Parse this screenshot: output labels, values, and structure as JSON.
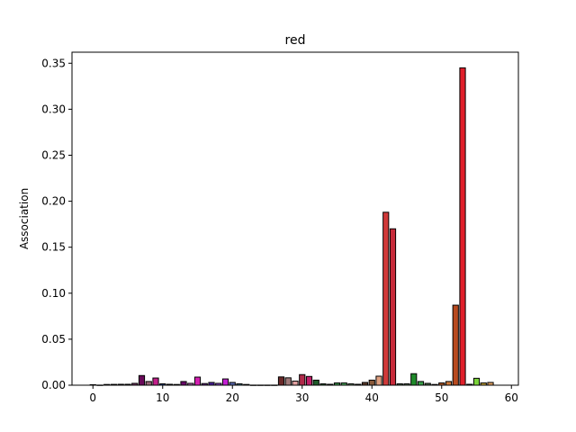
{
  "chart_data": {
    "type": "bar",
    "title": "red",
    "xlabel": "",
    "ylabel": "Association",
    "xlim": [
      -3,
      61
    ],
    "ylim": [
      0,
      0.362
    ],
    "xticks": [
      0,
      10,
      20,
      30,
      40,
      50,
      60
    ],
    "xtick_labels": [
      "0",
      "10",
      "20",
      "30",
      "40",
      "50",
      "60"
    ],
    "yticks": [
      0.0,
      0.05,
      0.1,
      0.15,
      0.2,
      0.25,
      0.3,
      0.35
    ],
    "ytick_labels": [
      "0.00",
      "0.05",
      "0.10",
      "0.15",
      "0.20",
      "0.25",
      "0.30",
      "0.35"
    ],
    "grid": false,
    "bar_width": 0.8,
    "edge_color": "#000000",
    "bars": [
      {
        "x": 0,
        "value": 0.0005,
        "color": "#4a4a4a"
      },
      {
        "x": 1,
        "value": 0.0001,
        "color": "#5a5a5a"
      },
      {
        "x": 2,
        "value": 0.0008,
        "color": "#6b6b6b"
      },
      {
        "x": 3,
        "value": 0.0009,
        "color": "#3a3a5a"
      },
      {
        "x": 4,
        "value": 0.001,
        "color": "#5a3a6a"
      },
      {
        "x": 5,
        "value": 0.001,
        "color": "#6a4a6a"
      },
      {
        "x": 6,
        "value": 0.002,
        "color": "#7a3a6a"
      },
      {
        "x": 7,
        "value": 0.0105,
        "color": "#6a0a5a"
      },
      {
        "x": 8,
        "value": 0.004,
        "color": "#9a6a7a"
      },
      {
        "x": 9,
        "value": 0.0078,
        "color": "#c21f8a"
      },
      {
        "x": 10,
        "value": 0.0015,
        "color": "#1f4fa0"
      },
      {
        "x": 11,
        "value": 0.001,
        "color": "#8a8aa0"
      },
      {
        "x": 12,
        "value": 0.0008,
        "color": "#9a9ab0"
      },
      {
        "x": 13,
        "value": 0.004,
        "color": "#6a0a6a"
      },
      {
        "x": 14,
        "value": 0.002,
        "color": "#b06ab0"
      },
      {
        "x": 15,
        "value": 0.0088,
        "color": "#d21fb0"
      },
      {
        "x": 16,
        "value": 0.0018,
        "color": "#6a2a8a"
      },
      {
        "x": 17,
        "value": 0.003,
        "color": "#4a1f9a"
      },
      {
        "x": 18,
        "value": 0.002,
        "color": "#8a4ad0"
      },
      {
        "x": 19,
        "value": 0.0068,
        "color": "#c21fd2"
      },
      {
        "x": 20,
        "value": 0.003,
        "color": "#5a6ab0"
      },
      {
        "x": 21,
        "value": 0.0015,
        "color": "#4a8a9a"
      },
      {
        "x": 22,
        "value": 0.0008,
        "color": "#3a5a7a"
      },
      {
        "x": 23,
        "value": 0.0001,
        "color": "#6a6a6a"
      },
      {
        "x": 24,
        "value": 0.0001,
        "color": "#7a7a7a"
      },
      {
        "x": 25,
        "value": 0.0001,
        "color": "#8a8a8a"
      },
      {
        "x": 26,
        "value": 0.0001,
        "color": "#9a9a9a"
      },
      {
        "x": 27,
        "value": 0.009,
        "color": "#6a2a2a"
      },
      {
        "x": 28,
        "value": 0.008,
        "color": "#a07a7a"
      },
      {
        "x": 29,
        "value": 0.0045,
        "color": "#e0a0a0"
      },
      {
        "x": 30,
        "value": 0.0115,
        "color": "#b02a4a"
      },
      {
        "x": 31,
        "value": 0.0095,
        "color": "#c21f6a"
      },
      {
        "x": 32,
        "value": 0.0055,
        "color": "#1f5a2a"
      },
      {
        "x": 33,
        "value": 0.0015,
        "color": "#2a6a3a"
      },
      {
        "x": 34,
        "value": 0.001,
        "color": "#6a7a6a"
      },
      {
        "x": 35,
        "value": 0.0025,
        "color": "#3a8a4a"
      },
      {
        "x": 36,
        "value": 0.0025,
        "color": "#4aa05a"
      },
      {
        "x": 37,
        "value": 0.0015,
        "color": "#7a9a7a"
      },
      {
        "x": 38,
        "value": 0.001,
        "color": "#9ab09a"
      },
      {
        "x": 39,
        "value": 0.003,
        "color": "#5a3a2a"
      },
      {
        "x": 40,
        "value": 0.0055,
        "color": "#8a5a3a"
      },
      {
        "x": 41,
        "value": 0.0098,
        "color": "#e0a080"
      },
      {
        "x": 42,
        "value": 0.188,
        "color": "#d03a3a"
      },
      {
        "x": 43,
        "value": 0.17,
        "color": "#c82a3a"
      },
      {
        "x": 44,
        "value": 0.0015,
        "color": "#5a7a5a"
      },
      {
        "x": 45,
        "value": 0.0015,
        "color": "#6a8a6a"
      },
      {
        "x": 46,
        "value": 0.0125,
        "color": "#1f8a2a"
      },
      {
        "x": 47,
        "value": 0.004,
        "color": "#3aa04a"
      },
      {
        "x": 48,
        "value": 0.002,
        "color": "#4a6a4a"
      },
      {
        "x": 49,
        "value": 0.0008,
        "color": "#7a8a7a"
      },
      {
        "x": 50,
        "value": 0.0025,
        "color": "#b05a2a"
      },
      {
        "x": 51,
        "value": 0.004,
        "color": "#d07a3a"
      },
      {
        "x": 52,
        "value": 0.087,
        "color": "#b84a1f"
      },
      {
        "x": 53,
        "value": 0.345,
        "color": "#e01f2a"
      },
      {
        "x": 54,
        "value": 0.001,
        "color": "#5a5a3a"
      },
      {
        "x": 55,
        "value": 0.0075,
        "color": "#7ad23a"
      },
      {
        "x": 56,
        "value": 0.0025,
        "color": "#c0a03a"
      },
      {
        "x": 57,
        "value": 0.003,
        "color": "#e0a060"
      }
    ]
  }
}
